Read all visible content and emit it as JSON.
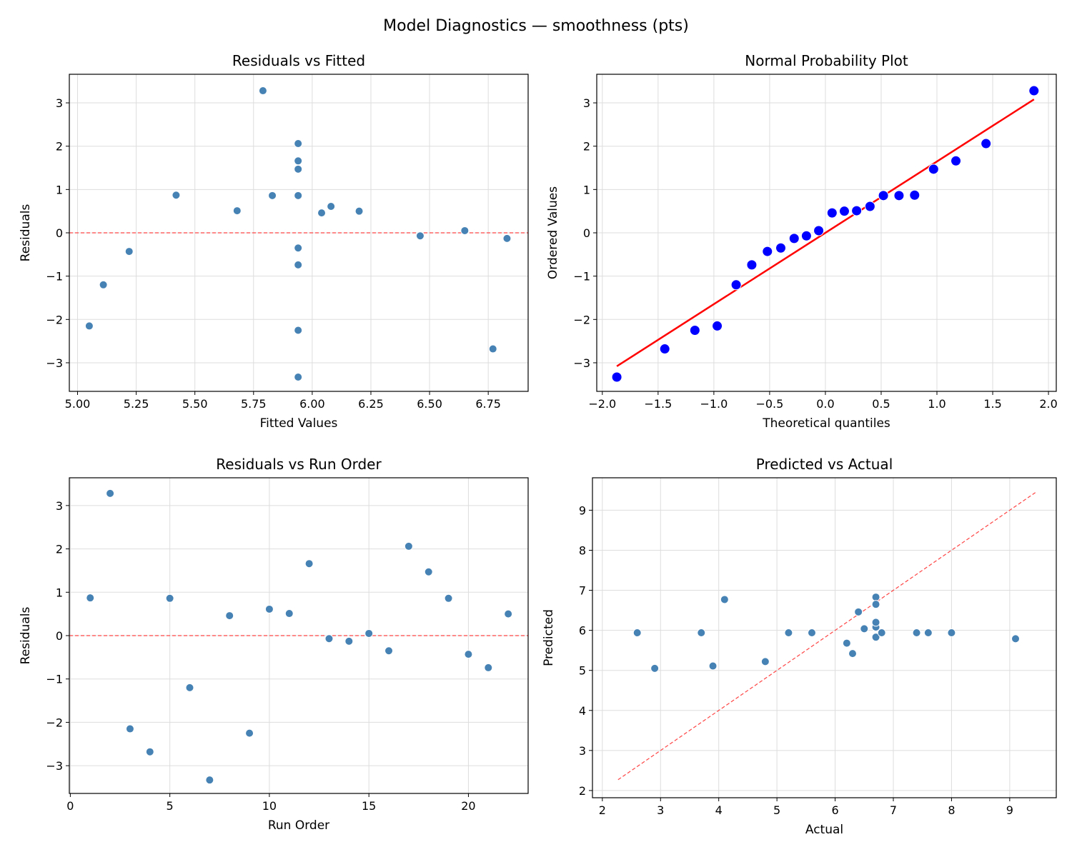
{
  "suptitle": "Model Diagnostics — smoothness (pts)",
  "colors": {
    "points": "#4682b4",
    "qq_points": "#0000ff",
    "qq_line": "#ff0000",
    "reference_line": "#ff4444",
    "grid": "#dddddd"
  },
  "chart_data": [
    {
      "type": "scatter",
      "title": "Residuals vs Fitted",
      "xlabel": "Fitted Values",
      "ylabel": "Residuals",
      "xlim": [
        4.965,
        6.92
      ],
      "ylim": [
        -3.66,
        3.66
      ],
      "xticks": [
        5.0,
        5.25,
        5.5,
        5.75,
        6.0,
        6.25,
        6.5,
        6.75
      ],
      "xtick_labels": [
        "5.00",
        "5.25",
        "5.50",
        "5.75",
        "6.00",
        "6.25",
        "6.50",
        "6.75"
      ],
      "yticks": [
        -3,
        -2,
        -1,
        0,
        1,
        2,
        3
      ],
      "ytick_labels": [
        "−3",
        "−2",
        "−1",
        "0",
        "1",
        "2",
        "3"
      ],
      "grid": true,
      "hline": 0,
      "x": [
        5.42,
        5.79,
        5.05,
        6.77,
        5.83,
        5.11,
        5.94,
        6.04,
        5.94,
        6.08,
        5.68,
        5.94,
        6.46,
        6.83,
        6.65,
        5.94,
        5.94,
        5.94,
        5.94,
        5.22,
        5.94,
        6.2
      ],
      "y": [
        0.87,
        3.28,
        -2.15,
        -2.68,
        0.86,
        -1.2,
        -3.33,
        0.46,
        -2.25,
        0.61,
        0.51,
        1.66,
        -0.07,
        -0.13,
        0.05,
        -0.35,
        2.06,
        1.47,
        0.86,
        -0.43,
        -0.74,
        0.5
      ]
    },
    {
      "type": "scatter",
      "title": "Normal Probability Plot",
      "xlabel": "Theoretical quantiles",
      "ylabel": "Ordered Values",
      "xlim": [
        -2.05,
        2.07
      ],
      "ylim": [
        -3.66,
        3.66
      ],
      "xticks": [
        -2.0,
        -1.5,
        -1.0,
        -0.5,
        0.0,
        0.5,
        1.0,
        1.5,
        2.0
      ],
      "xtick_labels": [
        "−2.0",
        "−1.5",
        "−1.0",
        "−0.5",
        "0.0",
        "0.5",
        "1.0",
        "1.5",
        "2.0"
      ],
      "yticks": [
        -3,
        -2,
        -1,
        0,
        1,
        2,
        3
      ],
      "ytick_labels": [
        "−3",
        "−2",
        "−1",
        "0",
        "1",
        "2",
        "3"
      ],
      "grid": true,
      "fit_line": {
        "slope": 1.647,
        "intercept": 0.0
      },
      "x": [
        -1.87,
        -1.44,
        -1.17,
        -0.97,
        -0.8,
        -0.66,
        -0.52,
        -0.4,
        -0.28,
        -0.17,
        -0.06,
        0.06,
        0.17,
        0.28,
        0.4,
        0.52,
        0.66,
        0.8,
        0.97,
        1.17,
        1.44,
        1.87
      ],
      "y": [
        -3.33,
        -2.68,
        -2.25,
        -2.15,
        -1.2,
        -0.74,
        -0.43,
        -0.35,
        -0.13,
        -0.07,
        0.05,
        0.46,
        0.5,
        0.51,
        0.61,
        0.86,
        0.86,
        0.87,
        1.47,
        1.66,
        2.06,
        3.28
      ]
    },
    {
      "type": "scatter",
      "title": "Residuals vs Run Order",
      "xlabel": "Run Order",
      "ylabel": "Residuals",
      "xlim": [
        -0.05,
        23.0
      ],
      "ylim": [
        -3.64,
        3.64
      ],
      "xticks": [
        0,
        5,
        10,
        15,
        20
      ],
      "xtick_labels": [
        "0",
        "5",
        "10",
        "15",
        "20"
      ],
      "yticks": [
        -3,
        -2,
        -1,
        0,
        1,
        2,
        3
      ],
      "ytick_labels": [
        "−3",
        "−2",
        "−1",
        "0",
        "1",
        "2",
        "3"
      ],
      "grid": true,
      "hline": 0,
      "x": [
        1,
        2,
        3,
        4,
        5,
        6,
        7,
        8,
        9,
        10,
        11,
        12,
        13,
        14,
        15,
        16,
        17,
        18,
        19,
        20,
        21,
        22
      ],
      "y": [
        0.87,
        3.28,
        -2.15,
        -2.68,
        0.86,
        -1.2,
        -3.33,
        0.46,
        -2.25,
        0.61,
        0.51,
        1.66,
        -0.07,
        -0.13,
        0.05,
        -0.35,
        2.06,
        1.47,
        0.86,
        -0.43,
        -0.74,
        0.5
      ]
    },
    {
      "type": "scatter",
      "title": "Predicted vs Actual",
      "xlabel": "Actual",
      "ylabel": "Predicted",
      "xlim": [
        1.83,
        9.8
      ],
      "ylim": [
        1.82,
        9.81
      ],
      "xticks": [
        2,
        3,
        4,
        5,
        6,
        7,
        8,
        9
      ],
      "xtick_labels": [
        "2",
        "3",
        "4",
        "5",
        "6",
        "7",
        "8",
        "9"
      ],
      "yticks": [
        2,
        3,
        4,
        5,
        6,
        7,
        8,
        9
      ],
      "ytick_labels": [
        "2",
        "3",
        "4",
        "5",
        "6",
        "7",
        "8",
        "9"
      ],
      "grid": true,
      "identity_line": [
        2.27,
        9.44
      ],
      "x": [
        6.3,
        9.1,
        2.9,
        4.1,
        6.7,
        3.9,
        2.6,
        6.5,
        3.7,
        6.7,
        6.2,
        7.6,
        6.4,
        6.7,
        6.7,
        5.6,
        8.0,
        7.4,
        6.8,
        4.8,
        5.2,
        6.7
      ],
      "y": [
        5.42,
        5.79,
        5.05,
        6.77,
        5.83,
        5.11,
        5.94,
        6.04,
        5.94,
        6.08,
        5.68,
        5.94,
        6.46,
        6.83,
        6.65,
        5.94,
        5.94,
        5.94,
        5.94,
        5.22,
        5.94,
        6.2
      ]
    }
  ]
}
